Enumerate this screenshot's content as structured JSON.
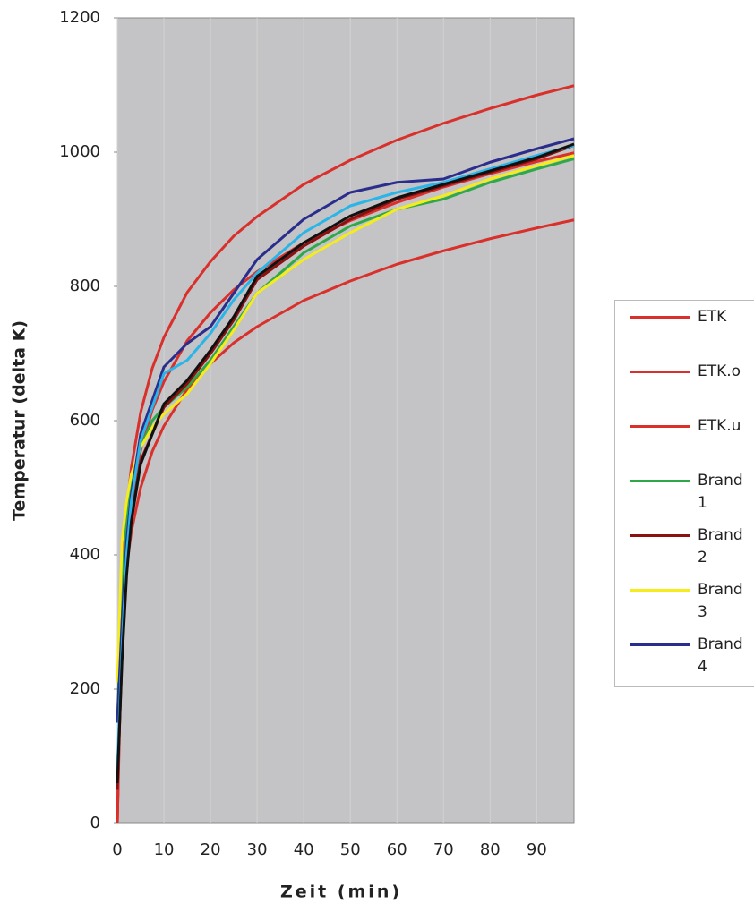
{
  "chart_data": {
    "type": "line",
    "y_label": "Temperatur (delta K)",
    "x_label": "Zeit (min)",
    "x": [
      0,
      1,
      2,
      3,
      5,
      7.5,
      10,
      15,
      20,
      25,
      30,
      40,
      50,
      60,
      70,
      80,
      90,
      98
    ],
    "xlim": [
      0,
      98
    ],
    "xticks": [
      0,
      10,
      20,
      30,
      40,
      50,
      60,
      70,
      80,
      90
    ],
    "ylim": [
      0,
      1200
    ],
    "yticks": [
      0,
      200,
      400,
      600,
      800,
      1000,
      1200
    ],
    "grid": true,
    "legend": "right",
    "series": [
      {
        "name": "ETK",
        "color": "#d9302c",
        "values": [
          0,
          329,
          424,
          482,
          556,
          616,
          658,
          719,
          761,
          795,
          822,
          865,
          898,
          925,
          948,
          968,
          986,
          999
        ]
      },
      {
        "name": "ETK.o",
        "color": "#d9302c",
        "values": [
          0,
          362,
          466,
          530,
          612,
          678,
          724,
          791,
          837,
          875,
          904,
          952,
          988,
          1018,
          1043,
          1065,
          1085,
          1099
        ]
      },
      {
        "name": "ETK.u",
        "color": "#d9302c",
        "values": [
          0,
          296,
          382,
          434,
          500,
          554,
          592,
          647,
          685,
          716,
          740,
          779,
          808,
          833,
          853,
          871,
          887,
          899
        ]
      },
      {
        "name": "Brand 1",
        "color": "#2fa84a",
        "values": [
          150,
          350,
          450,
          510,
          560,
          600,
          620,
          650,
          690,
          740,
          790,
          850,
          890,
          915,
          930,
          955,
          975,
          990
        ]
      },
      {
        "name": "Brand 2",
        "color": "#8b1010",
        "values": [
          50,
          250,
          380,
          460,
          540,
          580,
          620,
          655,
          700,
          750,
          810,
          860,
          900,
          930,
          950,
          970,
          990,
          1010
        ]
      },
      {
        "name": "Brand 3",
        "color": "#f5ec1a",
        "values": [
          210,
          420,
          480,
          520,
          560,
          590,
          610,
          640,
          685,
          735,
          790,
          840,
          880,
          915,
          935,
          960,
          980,
          995
        ]
      },
      {
        "name": "Brand 4",
        "color": "#2b2d8c",
        "values": [
          150,
          300,
          420,
          490,
          580,
          630,
          680,
          715,
          740,
          790,
          840,
          900,
          940,
          955,
          960,
          985,
          1005,
          1020
        ]
      },
      {
        "color": "#2ab5e8",
        "values": [
          80,
          260,
          400,
          480,
          570,
          620,
          670,
          690,
          730,
          780,
          820,
          880,
          920,
          940,
          955,
          975,
          995,
          1010
        ]
      },
      {
        "color": "#111111",
        "values": [
          60,
          240,
          370,
          450,
          535,
          580,
          625,
          660,
          705,
          755,
          815,
          865,
          905,
          932,
          952,
          972,
          992,
          1012
        ]
      }
    ]
  }
}
